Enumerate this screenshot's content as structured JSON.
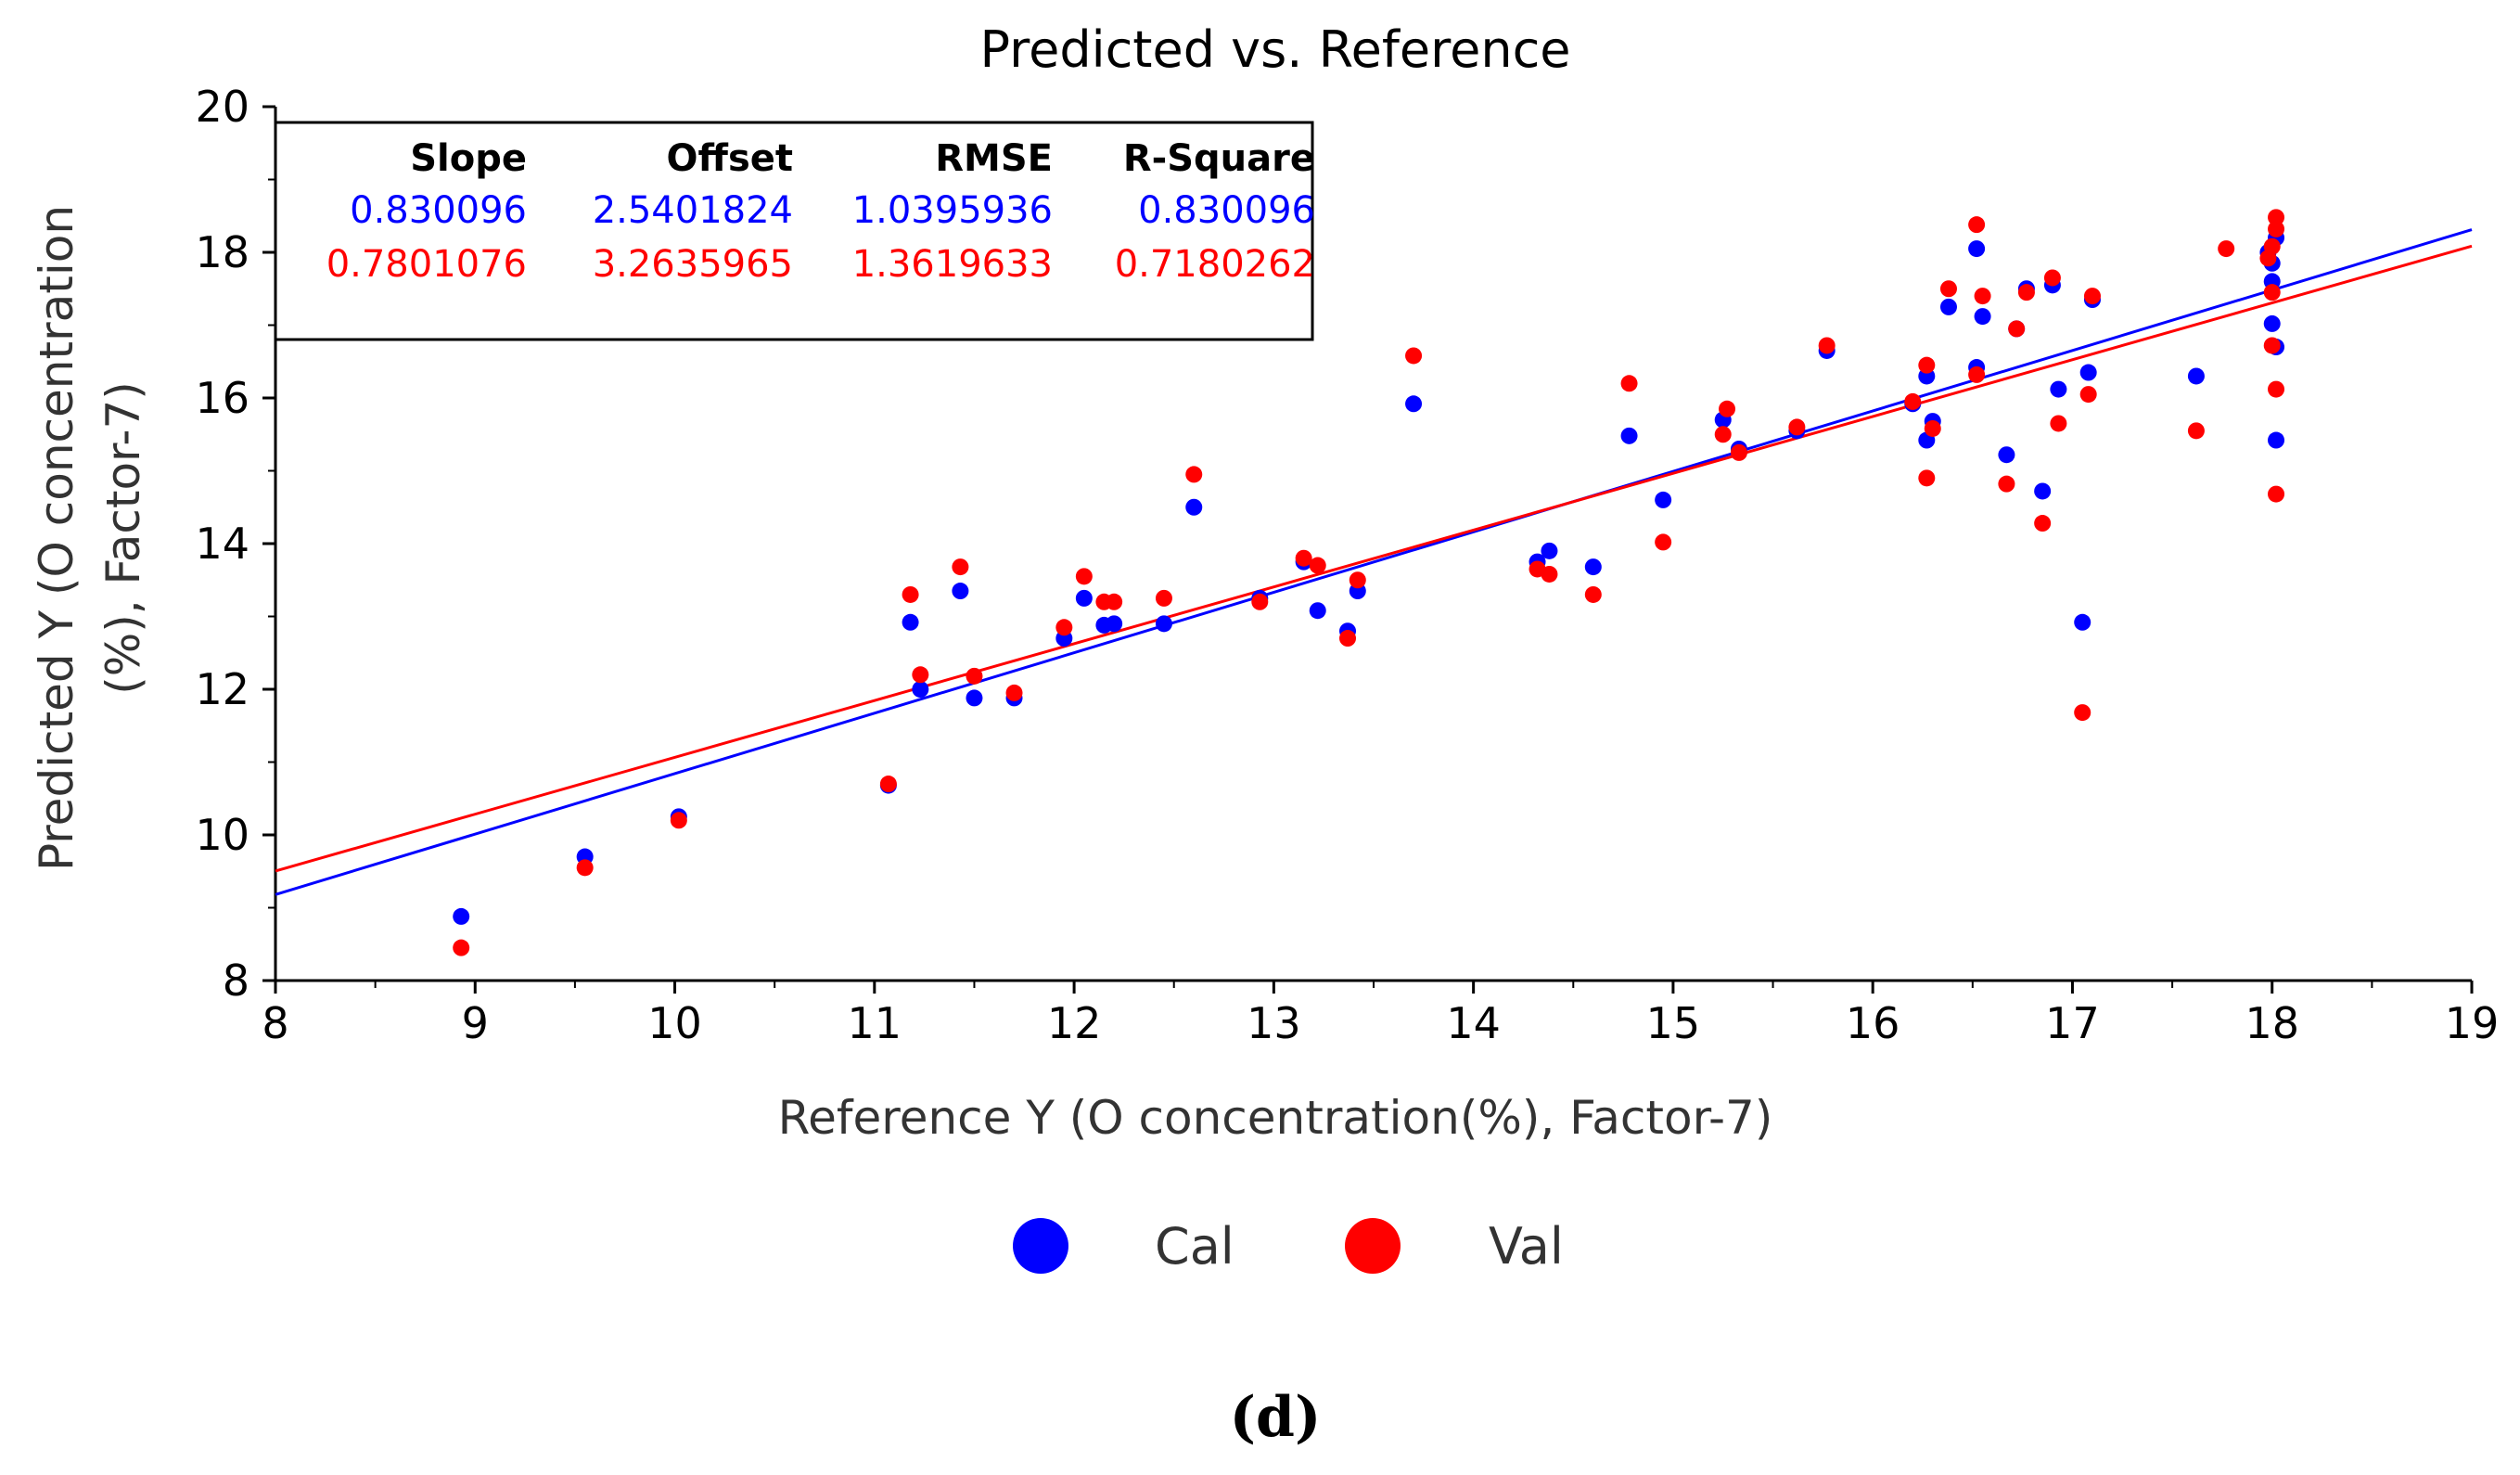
{
  "panel_label": "(d)",
  "chart_data": {
    "type": "scatter",
    "title": "Predicted vs. Reference",
    "xlabel": "Reference Y (O concentration(%), Factor-7)",
    "ylabel_lines": [
      "Predicted Y (O concentration",
      "(%), Factor-7)"
    ],
    "xlim": [
      8,
      19
    ],
    "ylim": [
      8,
      20
    ],
    "xticks": [
      8,
      9,
      10,
      11,
      12,
      13,
      14,
      15,
      16,
      17,
      18,
      19
    ],
    "yticks": [
      8,
      10,
      12,
      14,
      16,
      18,
      20
    ],
    "grid": false,
    "legend_position": "bottom",
    "stats_table": {
      "headers": [
        "Slope",
        "Offset",
        "RMSE",
        "R-Square"
      ],
      "rows": [
        {
          "series": "Cal",
          "values": [
            "0.830096",
            "2.5401824",
            "1.0395936",
            "0.830096"
          ]
        },
        {
          "series": "Val",
          "values": [
            "0.7801076",
            "3.2635965",
            "1.3619633",
            "0.7180262"
          ]
        }
      ]
    },
    "series": [
      {
        "name": "Cal",
        "color": "#0000ff",
        "slope": 0.830096,
        "offset": 2.5401824,
        "points": [
          [
            8.93,
            8.88
          ],
          [
            9.55,
            9.7
          ],
          [
            10.02,
            10.25
          ],
          [
            11.07,
            10.68
          ],
          [
            11.18,
            12.92
          ],
          [
            11.23,
            12.0
          ],
          [
            11.43,
            13.35
          ],
          [
            11.5,
            11.88
          ],
          [
            11.7,
            11.88
          ],
          [
            11.95,
            12.7
          ],
          [
            12.05,
            13.25
          ],
          [
            12.15,
            12.88
          ],
          [
            12.2,
            12.9
          ],
          [
            12.45,
            12.9
          ],
          [
            12.6,
            14.5
          ],
          [
            12.93,
            13.25
          ],
          [
            13.15,
            13.75
          ],
          [
            13.22,
            13.08
          ],
          [
            13.37,
            12.8
          ],
          [
            13.42,
            13.35
          ],
          [
            13.7,
            15.92
          ],
          [
            14.32,
            13.75
          ],
          [
            14.38,
            13.9
          ],
          [
            14.6,
            13.68
          ],
          [
            14.78,
            15.48
          ],
          [
            14.95,
            14.6
          ],
          [
            15.25,
            15.7
          ],
          [
            15.33,
            15.3
          ],
          [
            15.62,
            15.55
          ],
          [
            15.77,
            16.65
          ],
          [
            16.2,
            15.92
          ],
          [
            16.27,
            15.42
          ],
          [
            16.27,
            16.3
          ],
          [
            16.3,
            15.68
          ],
          [
            16.38,
            17.25
          ],
          [
            16.52,
            18.05
          ],
          [
            16.52,
            16.42
          ],
          [
            16.55,
            17.12
          ],
          [
            16.67,
            15.22
          ],
          [
            16.72,
            16.95
          ],
          [
            16.77,
            17.5
          ],
          [
            16.85,
            14.72
          ],
          [
            16.9,
            17.55
          ],
          [
            16.93,
            16.12
          ],
          [
            17.05,
            12.92
          ],
          [
            17.08,
            16.35
          ],
          [
            17.1,
            17.35
          ],
          [
            17.62,
            16.3
          ],
          [
            17.98,
            18.0
          ],
          [
            18.0,
            17.85
          ],
          [
            18.0,
            17.6
          ],
          [
            18.0,
            17.02
          ],
          [
            18.02,
            18.2
          ],
          [
            18.02,
            16.7
          ],
          [
            18.02,
            15.42
          ]
        ]
      },
      {
        "name": "Val",
        "color": "#ff0000",
        "slope": 0.7801076,
        "offset": 3.2635965,
        "points": [
          [
            8.93,
            8.45
          ],
          [
            9.55,
            9.55
          ],
          [
            10.02,
            10.2
          ],
          [
            11.07,
            10.7
          ],
          [
            11.18,
            13.3
          ],
          [
            11.23,
            12.2
          ],
          [
            11.43,
            13.68
          ],
          [
            11.5,
            12.18
          ],
          [
            11.7,
            11.95
          ],
          [
            11.95,
            12.85
          ],
          [
            12.05,
            13.55
          ],
          [
            12.15,
            13.2
          ],
          [
            12.2,
            13.2
          ],
          [
            12.45,
            13.25
          ],
          [
            12.6,
            14.95
          ],
          [
            12.93,
            13.2
          ],
          [
            13.15,
            13.8
          ],
          [
            13.22,
            13.7
          ],
          [
            13.37,
            12.7
          ],
          [
            13.42,
            13.5
          ],
          [
            13.7,
            16.58
          ],
          [
            14.32,
            13.65
          ],
          [
            14.38,
            13.58
          ],
          [
            14.6,
            13.3
          ],
          [
            14.78,
            16.2
          ],
          [
            14.95,
            14.02
          ],
          [
            15.25,
            15.5
          ],
          [
            15.27,
            15.85
          ],
          [
            15.33,
            15.25
          ],
          [
            15.62,
            15.6
          ],
          [
            15.77,
            16.72
          ],
          [
            16.2,
            15.95
          ],
          [
            16.27,
            14.9
          ],
          [
            16.27,
            16.45
          ],
          [
            16.3,
            15.58
          ],
          [
            16.38,
            17.5
          ],
          [
            16.52,
            18.38
          ],
          [
            16.52,
            16.32
          ],
          [
            16.55,
            17.4
          ],
          [
            16.67,
            14.82
          ],
          [
            16.72,
            16.95
          ],
          [
            16.77,
            17.45
          ],
          [
            16.85,
            14.28
          ],
          [
            16.9,
            17.65
          ],
          [
            16.93,
            15.65
          ],
          [
            17.05,
            11.68
          ],
          [
            17.08,
            16.05
          ],
          [
            17.1,
            17.4
          ],
          [
            17.62,
            15.55
          ],
          [
            17.77,
            18.05
          ],
          [
            17.98,
            17.92
          ],
          [
            18.0,
            18.08
          ],
          [
            18.0,
            17.45
          ],
          [
            18.0,
            16.72
          ],
          [
            18.02,
            18.48
          ],
          [
            18.02,
            18.32
          ],
          [
            18.02,
            16.12
          ],
          [
            18.02,
            14.68
          ]
        ]
      }
    ]
  }
}
